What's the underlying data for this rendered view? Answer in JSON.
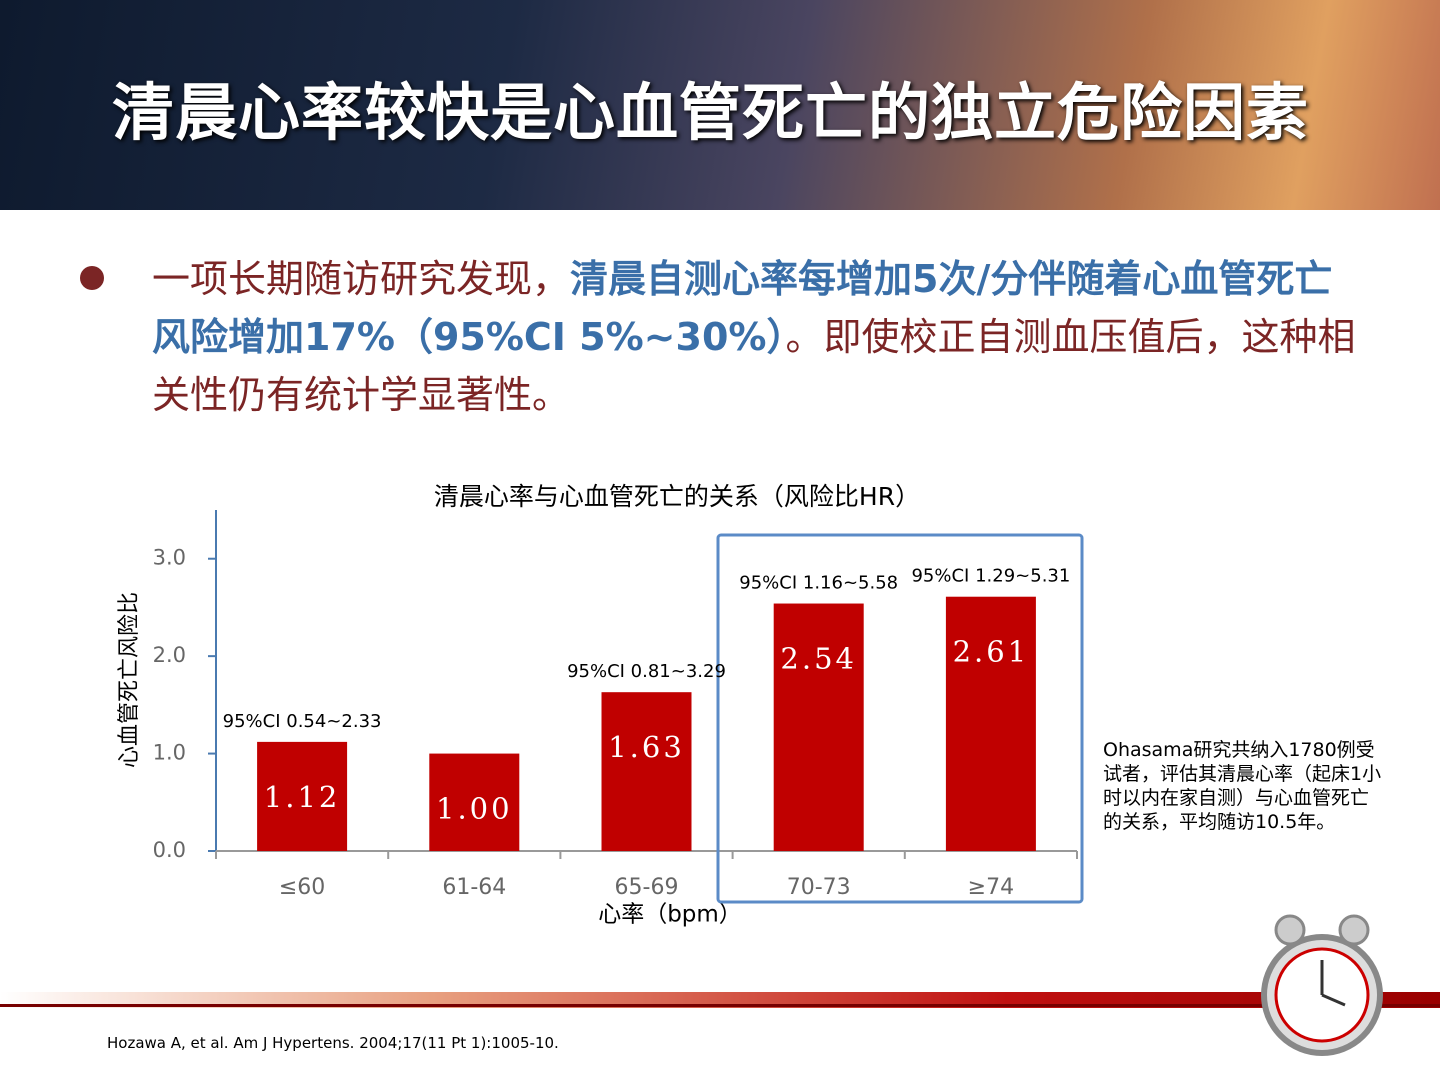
{
  "slide_title": "清晨心率较快是心血管死亡的独立危险因素",
  "bullet": [
    "一项长期随访研究发现，",
    "清晨自测心率每增加5次/分伴随着心血管死亡风险增加17%（95%CI 5%~30%）",
    "。即使校正自测血压值后，这种相关性仍有统计学显著性。"
  ],
  "side_note": "Ohasama研究共纳入1780例受试者，评估其清晨心率（起床1小时以内在家自测）与心血管死亡的关系，平均随访10.5年。",
  "reference": "Hozawa A, et al. Am J Hypertens. 2004;17(11 Pt 1):1005-10.",
  "chart_data": {
    "type": "bar",
    "title": "清晨心率与心血管死亡的关系（风险比HR）",
    "y_label": "心血管死亡风险比",
    "x_label": "心率（bpm）",
    "categories": [
      "≤60",
      "61-64",
      "65-69",
      "70-73",
      "≥74"
    ],
    "values": [
      1.12,
      1.0,
      1.63,
      2.54,
      2.61
    ],
    "value_labels": [
      "1.12",
      "1.00",
      "1.63",
      "2.54",
      "2.61"
    ],
    "ci_labels": [
      "95%CI 0.54~2.33",
      null,
      "95%CI 0.81~3.29",
      "95%CI 1.16~5.58",
      "95%CI 1.29~5.31"
    ],
    "color": "#c00000",
    "ylim": [
      0,
      3.5
    ],
    "yticks": [
      {
        "value": 0,
        "label": "0.0"
      },
      {
        "value": 1,
        "label": "1.0"
      },
      {
        "value": 2,
        "label": "2.0"
      },
      {
        "value": 3,
        "label": "3.0"
      }
    ]
  }
}
